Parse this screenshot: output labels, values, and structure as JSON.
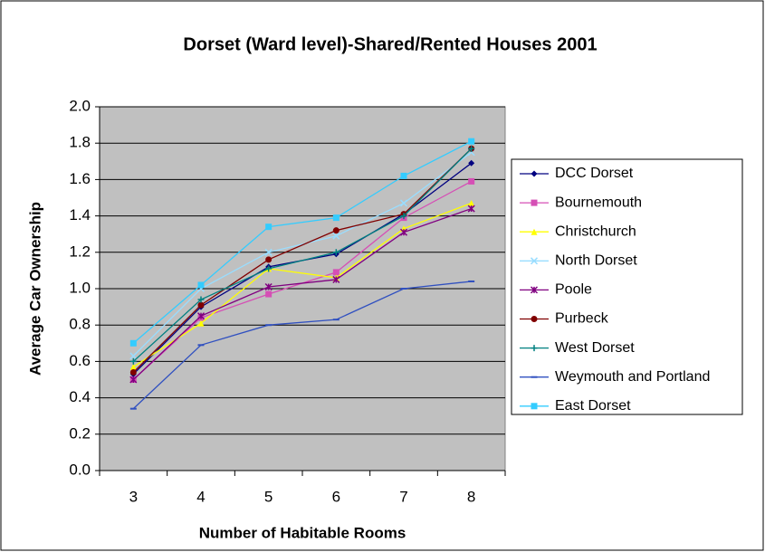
{
  "chart_data": {
    "type": "line",
    "title": "Dorset (Ward level)-Shared/Rented Houses 2001",
    "x_label": "Number of Habitable Rooms",
    "y_label": "Average Car Ownership",
    "categories": [
      "3",
      "4",
      "5",
      "6",
      "7",
      "8"
    ],
    "ylim": [
      0,
      2
    ],
    "yticks": [
      {
        "value": 0,
        "label": "0.0"
      },
      0.2,
      0.4,
      0.6,
      0.8,
      {
        "value": 1,
        "label": "1.0"
      },
      1.2,
      1.4,
      1.6,
      1.8,
      {
        "value": 2,
        "label": "2.0"
      }
    ],
    "grid": true,
    "legend": "right",
    "series": [
      {
        "name": "DCC Dorset",
        "color": "#000080",
        "marker": "diamond",
        "values": [
          0.53,
          0.9,
          1.12,
          1.19,
          1.41,
          1.69
        ]
      },
      {
        "name": "Bournemouth",
        "color": "#d54fb5",
        "marker": "square",
        "values": [
          0.5,
          0.84,
          0.97,
          1.09,
          1.39,
          1.59
        ]
      },
      {
        "name": "Christchurch",
        "color": "#ffff00",
        "marker": "triangle",
        "values": [
          0.57,
          0.81,
          1.11,
          1.06,
          1.33,
          1.47
        ]
      },
      {
        "name": "North Dorset",
        "color": "#99ddff",
        "marker": "x",
        "values": [
          0.63,
          1.0,
          1.2,
          1.29,
          1.47,
          1.75
        ]
      },
      {
        "name": "Poole",
        "color": "#800080",
        "marker": "star",
        "values": [
          0.5,
          0.85,
          1.01,
          1.05,
          1.31,
          1.44
        ]
      },
      {
        "name": "Purbeck",
        "color": "#800000",
        "marker": "circle",
        "values": [
          0.54,
          0.91,
          1.16,
          1.32,
          1.41,
          1.77
        ]
      },
      {
        "name": "West Dorset",
        "color": "#008080",
        "marker": "plus",
        "values": [
          0.6,
          0.94,
          1.11,
          1.2,
          1.4,
          1.77
        ]
      },
      {
        "name": "Weymouth and Portland",
        "color": "#3050c0",
        "marker": "dash",
        "values": [
          0.34,
          0.69,
          0.8,
          0.83,
          1.0,
          1.04
        ]
      },
      {
        "name": "East Dorset",
        "color": "#33ccff",
        "marker": "square",
        "values": [
          0.7,
          1.02,
          1.34,
          1.39,
          1.62,
          1.81
        ]
      }
    ]
  }
}
